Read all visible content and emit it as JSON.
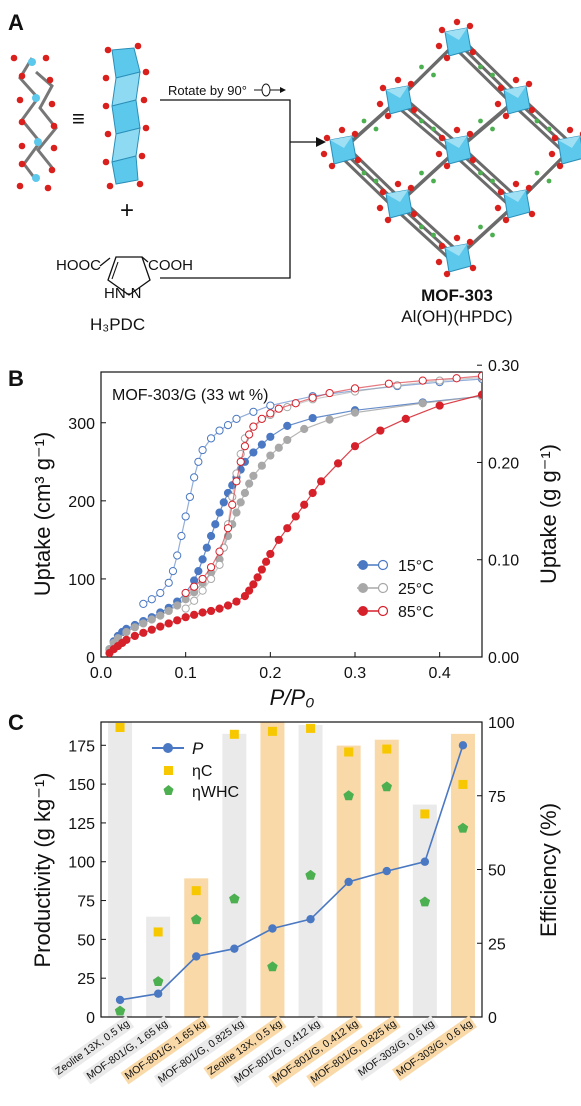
{
  "panel_a": {
    "label": "A",
    "equiv": "≡",
    "rotate_text": "Rotate by 90°",
    "plus": "+",
    "hooc": "HOOC",
    "cooh": "COOH",
    "hnn": "HN-N",
    "h3pdc": "H₃PDC",
    "mof_name": "MOF-303",
    "mof_formula": "Al(OH)(HPDC)"
  },
  "panel_b": {
    "label": "B",
    "inset_label": "MOF-303/G (33 wt %)",
    "ylabel_left": "Uptake (cm³ g⁻¹)",
    "ylabel_right": "Uptake (g g⁻¹)",
    "xlabel": "P/P₀"
  },
  "panel_c": {
    "label": "C",
    "ylabel_left": "Productivity (g kg⁻¹)",
    "ylabel_right": "Efficiency  (%)",
    "legend": {
      "p": "P",
      "eta_c": "ηC",
      "eta_whc": "ηWHC"
    }
  },
  "colors": {
    "blue": "#4a78c2",
    "gray": "#a8a8a8",
    "red": "#d6202a",
    "orange_bar": "#f9d9a8",
    "gray_bar": "#eaeaea",
    "yellow": "#f7c800",
    "green": "#4caf50",
    "cyan": "#5bc8ec",
    "oxygen": "#d9201c"
  },
  "chart_data": [
    {
      "type": "line",
      "panel": "B",
      "title": "MOF-303/G (33 wt %)",
      "xlabel": "P/P0",
      "ylabel": "Uptake (cm3 g-1)",
      "ylabel_right": "Uptake (g g-1)",
      "xlim": [
        0,
        0.45
      ],
      "ylim": [
        0,
        365
      ],
      "ylim_right": [
        0,
        0.293
      ],
      "xticks": [
        "0.0",
        "0.1",
        "0.2",
        "0.3",
        "0.4"
      ],
      "yticks": [
        "0",
        "100",
        "200",
        "300"
      ],
      "yticks_right": [
        "0.00",
        "0.10",
        "0.20",
        "0.30"
      ],
      "legend_position": "center-right",
      "series": [
        {
          "name": "15°C",
          "color": "blue",
          "branch": "adsorption",
          "filled": true,
          "x": [
            0.01,
            0.015,
            0.02,
            0.025,
            0.03,
            0.04,
            0.05,
            0.06,
            0.07,
            0.08,
            0.09,
            0.1,
            0.11,
            0.115,
            0.12,
            0.125,
            0.13,
            0.135,
            0.14,
            0.145,
            0.15,
            0.155,
            0.16,
            0.165,
            0.17,
            0.18,
            0.19,
            0.2,
            0.22,
            0.25,
            0.3,
            0.38,
            0.45
          ],
          "y": [
            10,
            20,
            27,
            32,
            36,
            41,
            46,
            51,
            57,
            63,
            71,
            82,
            98,
            110,
            125,
            140,
            155,
            170,
            185,
            198,
            210,
            220,
            230,
            240,
            250,
            262,
            272,
            282,
            296,
            306,
            316,
            326,
            334
          ]
        },
        {
          "name": "15°C",
          "color": "blue",
          "branch": "desorption",
          "filled": false,
          "x": [
            0.45,
            0.4,
            0.35,
            0.3,
            0.25,
            0.2,
            0.18,
            0.16,
            0.15,
            0.14,
            0.13,
            0.12,
            0.115,
            0.11,
            0.105,
            0.1,
            0.095,
            0.09,
            0.085,
            0.08,
            0.07,
            0.06,
            0.05
          ],
          "y": [
            356,
            352,
            347,
            341,
            334,
            322,
            314,
            305,
            297,
            290,
            280,
            265,
            250,
            230,
            205,
            180,
            155,
            130,
            110,
            95,
            82,
            74,
            68
          ]
        },
        {
          "name": "25°C",
          "color": "gray",
          "branch": "adsorption",
          "filled": true,
          "x": [
            0.01,
            0.015,
            0.02,
            0.03,
            0.04,
            0.05,
            0.06,
            0.07,
            0.08,
            0.09,
            0.1,
            0.11,
            0.12,
            0.13,
            0.14,
            0.145,
            0.15,
            0.155,
            0.16,
            0.165,
            0.17,
            0.175,
            0.18,
            0.19,
            0.2,
            0.21,
            0.22,
            0.24,
            0.27,
            0.3,
            0.38,
            0.45
          ],
          "y": [
            10,
            18,
            24,
            32,
            38,
            43,
            48,
            53,
            59,
            66,
            74,
            83,
            95,
            108,
            125,
            140,
            155,
            170,
            185,
            198,
            210,
            222,
            232,
            245,
            258,
            268,
            278,
            292,
            304,
            313,
            325,
            334
          ]
        },
        {
          "name": "25°C",
          "color": "gray",
          "branch": "desorption",
          "filled": false,
          "x": [
            0.45,
            0.4,
            0.35,
            0.3,
            0.25,
            0.22,
            0.2,
            0.18,
            0.17,
            0.165,
            0.16,
            0.155,
            0.15,
            0.145,
            0.14,
            0.13,
            0.12,
            0.11,
            0.1
          ],
          "y": [
            358,
            354,
            348,
            340,
            330,
            320,
            310,
            295,
            280,
            260,
            235,
            205,
            170,
            140,
            118,
            100,
            85,
            72,
            62
          ]
        },
        {
          "name": "85°C",
          "color": "red",
          "branch": "adsorption",
          "filled": true,
          "x": [
            0.01,
            0.015,
            0.02,
            0.025,
            0.03,
            0.04,
            0.05,
            0.06,
            0.07,
            0.08,
            0.09,
            0.1,
            0.11,
            0.12,
            0.13,
            0.14,
            0.15,
            0.16,
            0.17,
            0.175,
            0.18,
            0.185,
            0.19,
            0.195,
            0.2,
            0.21,
            0.22,
            0.23,
            0.24,
            0.25,
            0.26,
            0.28,
            0.3,
            0.33,
            0.36,
            0.4,
            0.45
          ],
          "y": [
            5,
            10,
            14,
            18,
            22,
            27,
            31,
            35,
            39,
            43,
            47,
            51,
            54,
            57,
            59,
            62,
            66,
            71,
            78,
            85,
            93,
            102,
            112,
            122,
            132,
            150,
            165,
            180,
            195,
            210,
            225,
            248,
            270,
            290,
            305,
            322,
            336
          ]
        },
        {
          "name": "85°C",
          "color": "red",
          "branch": "desorption",
          "filled": false,
          "x": [
            0.45,
            0.42,
            0.38,
            0.34,
            0.3,
            0.27,
            0.25,
            0.23,
            0.21,
            0.2,
            0.19,
            0.18,
            0.175,
            0.17,
            0.165,
            0.16,
            0.155,
            0.15,
            0.14,
            0.13,
            0.12,
            0.11,
            0.1
          ],
          "y": [
            360,
            357,
            354,
            350,
            344,
            338,
            332,
            325,
            318,
            312,
            305,
            295,
            285,
            270,
            250,
            225,
            195,
            165,
            135,
            115,
            100,
            90,
            82
          ]
        }
      ]
    },
    {
      "type": "bar",
      "panel": "C",
      "xlabel": "",
      "ylabel": "Productivity (g kg-1)",
      "ylabel_right": "Efficiency (%)",
      "ylim": [
        0,
        190
      ],
      "ylim_right": [
        0,
        100
      ],
      "yticks": [
        "0",
        "25",
        "50",
        "75",
        "100",
        "125",
        "150",
        "175"
      ],
      "yticks_right": [
        "0",
        "25",
        "50",
        "75",
        "100"
      ],
      "legend_position": "top-left",
      "categories": [
        "Zeolite 13X, 0.5 kg",
        "MOF-801/G, 1.65 kg",
        "MOF-801/G, 1.65 kg",
        "MOF-801/G, 0.825 kg",
        "Zeolite 13X, 0.5 kg",
        "MOF-801/G, 0.412 kg",
        "MOF-801/G, 0.412 kg",
        "MOF-801/G, 0.825 kg",
        "MOF-303/G, 0.6 kg",
        "MOF-303/G, 0.6 kg"
      ],
      "category_highlight": [
        false,
        false,
        true,
        false,
        true,
        false,
        true,
        true,
        false,
        true
      ],
      "bar_values_percent": [
        100,
        34,
        47,
        96,
        100,
        99,
        92,
        94,
        72,
        96
      ],
      "series": [
        {
          "name": "P",
          "axis": "left",
          "values": [
            11,
            15,
            39,
            44,
            57,
            63,
            87,
            94,
            100,
            175
          ]
        },
        {
          "name": "ηC",
          "axis": "right",
          "values": [
            100,
            29,
            43,
            96,
            97,
            98,
            90,
            91,
            69,
            79
          ]
        },
        {
          "name": "ηWHC",
          "axis": "right",
          "values": [
            2,
            12,
            33,
            40,
            17,
            48,
            75,
            78,
            39,
            64
          ]
        }
      ]
    }
  ]
}
